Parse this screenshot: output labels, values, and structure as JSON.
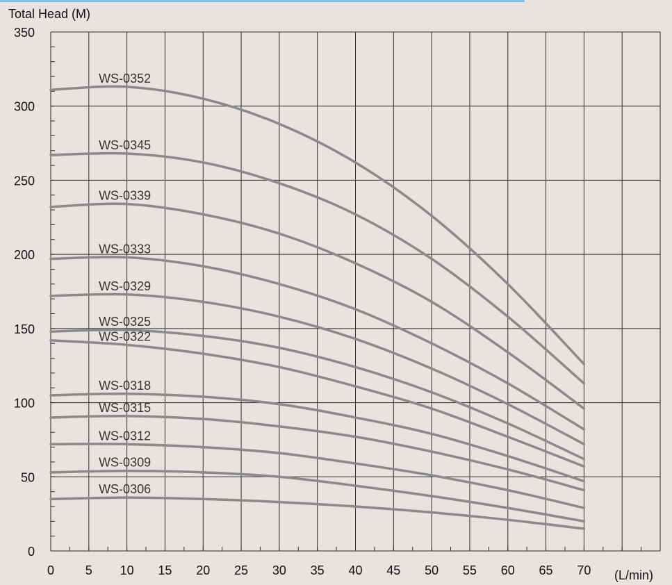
{
  "chart_data": {
    "type": "line",
    "ylabel": "Total Head (M)",
    "xlabel": "(L/min)",
    "xlim": [
      0,
      80
    ],
    "ylim": [
      0,
      350
    ],
    "x_ticks": [
      "0",
      "5",
      "10",
      "15",
      "20",
      "25",
      "30",
      "35",
      "40",
      "45",
      "50",
      "55",
      "60",
      "65",
      "70"
    ],
    "y_ticks": [
      "0",
      "50",
      "100",
      "150",
      "200",
      "250",
      "300",
      "350"
    ],
    "grid": true,
    "colors": {
      "background": "#e8e2e0",
      "curve": "#8a8a8a",
      "grid": "#2a2a2a"
    },
    "x": [
      0,
      10,
      20,
      30,
      40,
      50,
      60,
      70
    ],
    "series": [
      {
        "name": "WS-0352",
        "values": [
          311,
          313,
          305,
          288,
          262,
          226,
          180,
          126
        ]
      },
      {
        "name": "WS-0345",
        "values": [
          267,
          268,
          262,
          248,
          227,
          197,
          158,
          113
        ]
      },
      {
        "name": "WS-0339",
        "values": [
          232,
          234,
          227,
          214,
          194,
          168,
          134,
          96
        ]
      },
      {
        "name": "WS-0333",
        "values": [
          197,
          198,
          192,
          180,
          163,
          140,
          113,
          82
        ]
      },
      {
        "name": "WS-0329",
        "values": [
          172,
          173,
          168,
          158,
          143,
          123,
          99,
          72
        ]
      },
      {
        "name": "WS-0325",
        "values": [
          148,
          149,
          145,
          137,
          124,
          107,
          86,
          62
        ]
      },
      {
        "name": "WS-0322",
        "values": [
          142,
          139,
          133,
          124,
          111,
          96,
          77,
          57
        ]
      },
      {
        "name": "WS-0318",
        "values": [
          105,
          106,
          104,
          99,
          90,
          79,
          64,
          47
        ]
      },
      {
        "name": "WS-0315",
        "values": [
          90,
          91,
          89,
          84,
          77,
          67,
          55,
          41
        ]
      },
      {
        "name": "WS-0312",
        "values": [
          72,
          72,
          70,
          66,
          59,
          51,
          41,
          29
        ]
      },
      {
        "name": "WS-0309",
        "values": [
          53,
          54,
          53,
          50,
          44,
          37,
          29,
          20
        ]
      },
      {
        "name": "WS-0306",
        "values": [
          35,
          36,
          35,
          33,
          30,
          26,
          21,
          15
        ]
      }
    ]
  }
}
